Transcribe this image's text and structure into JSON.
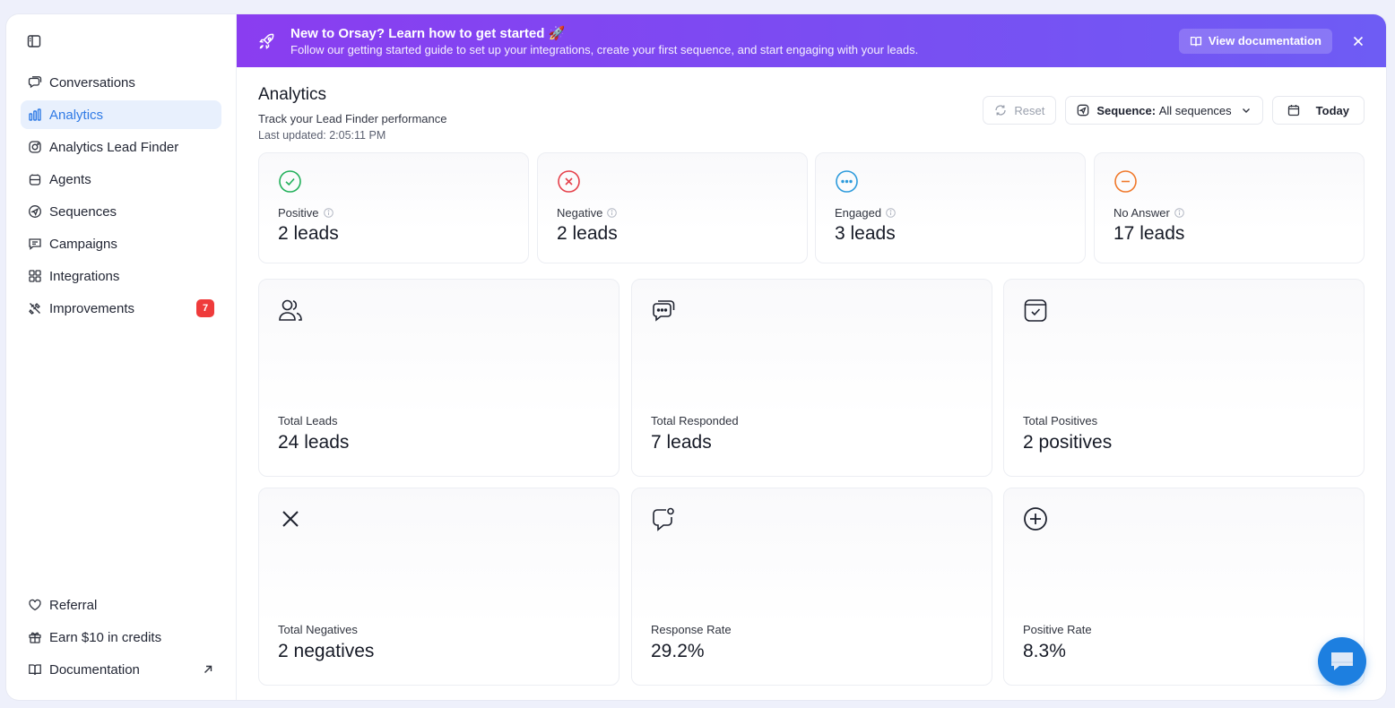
{
  "sidebar": {
    "toggle_icon": "sidebar-panel-icon",
    "items": [
      {
        "label": "Conversations",
        "icon": "conversations-icon"
      },
      {
        "label": "Analytics",
        "icon": "bar-chart-icon",
        "active": true
      },
      {
        "label": "Analytics Lead Finder",
        "icon": "instagram-icon"
      },
      {
        "label": "Agents",
        "icon": "agents-icon"
      },
      {
        "label": "Sequences",
        "icon": "send-icon"
      },
      {
        "label": "Campaigns",
        "icon": "message-square-icon"
      },
      {
        "label": "Integrations",
        "icon": "grid-icon"
      },
      {
        "label": "Improvements",
        "icon": "tools-icon",
        "badge": "7"
      }
    ],
    "bottom_items": [
      {
        "label": "Referral",
        "icon": "heart-icon"
      },
      {
        "label": "Earn $10 in credits",
        "icon": "gift-icon"
      },
      {
        "label": "Documentation",
        "icon": "book-icon"
      }
    ]
  },
  "banner": {
    "title": "New to Orsay? Learn how to get started 🚀",
    "subtitle": "Follow our getting started guide to set up your integrations, create your first sequence, and start engaging with your leads.",
    "button_label": "View documentation"
  },
  "header": {
    "title": "Analytics",
    "subtitle": "Track your Lead Finder performance",
    "last_updated": "Last updated: 2:05:11 PM",
    "reset_label": "Reset",
    "sequence_prefix": "Sequence:",
    "sequence_value": "All sequences",
    "date_label": "Today"
  },
  "status_cards": [
    {
      "label": "Positive",
      "value": "2 leads",
      "color": "#22b05a"
    },
    {
      "label": "Negative",
      "value": "2 leads",
      "color": "#e5404a"
    },
    {
      "label": "Engaged",
      "value": "3 leads",
      "color": "#2d9bdc"
    },
    {
      "label": "No Answer",
      "value": "17 leads",
      "color": "#f0782a"
    }
  ],
  "metric_cards": [
    {
      "label": "Total Leads",
      "value": "24 leads",
      "icon": "users-icon"
    },
    {
      "label": "Total Responded",
      "value": "7 leads",
      "icon": "chat-bubbles-icon"
    },
    {
      "label": "Total Positives",
      "value": "2 positives",
      "icon": "calendar-check-icon"
    },
    {
      "label": "Total Negatives",
      "value": "2 negatives",
      "icon": "x-icon"
    },
    {
      "label": "Response Rate",
      "value": "29.2%",
      "icon": "message-notification-icon"
    },
    {
      "label": "Positive Rate",
      "value": "8.3%",
      "icon": "plus-circle-icon"
    }
  ],
  "colors": {
    "accent": "#2f7ae5",
    "banner_start": "#8a3df0",
    "banner_end": "#6e5cf4",
    "badge": "#ef3b3b",
    "chat_button": "#1d7fe0"
  }
}
